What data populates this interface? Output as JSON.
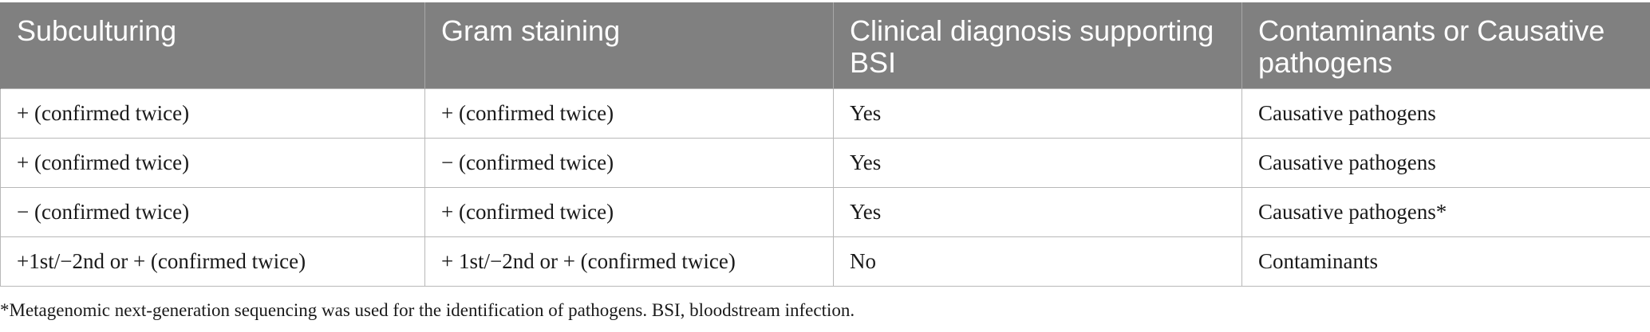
{
  "table": {
    "headers": [
      "Subculturing",
      "Gram staining",
      "Clinical diagnosis supporting BSI",
      "Contaminants or Causative pathogens"
    ],
    "rows": [
      [
        "+ (confirmed twice)",
        "+ (confirmed twice)",
        "Yes",
        "Causative pathogens"
      ],
      [
        "+ (confirmed twice)",
        "− (confirmed twice)",
        "Yes",
        "Causative pathogens"
      ],
      [
        "− (confirmed twice)",
        "+ (confirmed twice)",
        "Yes",
        "Causative pathogens*"
      ],
      [
        "+1st/−2nd or + (confirmed twice)",
        "+ 1st/−2nd or + (confirmed twice)",
        "No",
        "Contaminants"
      ]
    ]
  },
  "footnote": "*Metagenomic next-generation sequencing was used for the identification of pathogens. BSI, bloodstream infection."
}
